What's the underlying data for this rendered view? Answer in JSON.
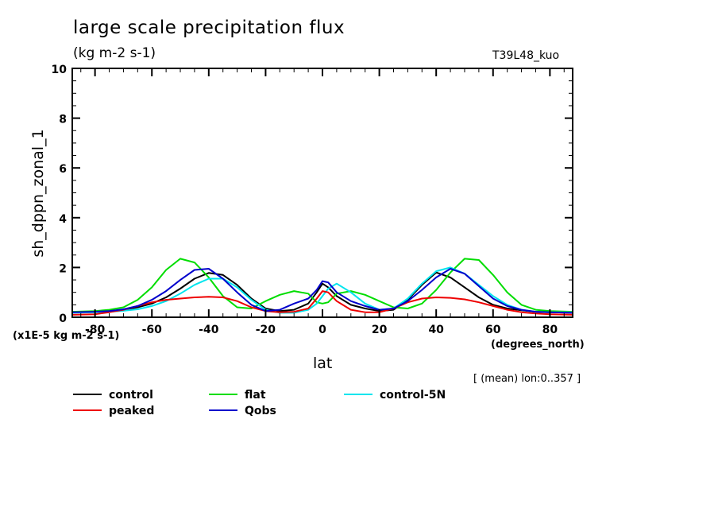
{
  "chart_data": {
    "type": "line",
    "title": "large scale precipitation flux",
    "subtitle": "(kg m-2 s-1)",
    "run_label": "T39L48_kuo",
    "xlabel": "lat",
    "x_units": "(degrees_north)",
    "ylabel": "sh_dppn_zonal_1",
    "y_scale_note": "(x1E-5 kg m-2 s-1)",
    "mean_note": "[ (mean) lon:0..357 ]",
    "xlim": [
      -88,
      88
    ],
    "ylim": [
      0,
      10
    ],
    "x_ticks": [
      -80,
      -60,
      -40,
      -20,
      0,
      20,
      40,
      60,
      80
    ],
    "x_tick_labels": [
      "-80",
      "-60",
      "-40",
      "-20",
      "0",
      "20",
      "40",
      "60",
      "80"
    ],
    "y_ticks": [
      0,
      2,
      4,
      6,
      8,
      10
    ],
    "y_tick_labels": [
      "0",
      "2",
      "4",
      "6",
      "8",
      "10"
    ],
    "grid": false,
    "legend_position": "bottom",
    "x": [
      -88,
      -80,
      -75,
      -70,
      -65,
      -60,
      -55,
      -50,
      -45,
      -40,
      -35,
      -30,
      -25,
      -20,
      -15,
      -10,
      -5,
      -2,
      0,
      2,
      5,
      10,
      15,
      20,
      25,
      30,
      35,
      40,
      45,
      50,
      55,
      60,
      65,
      70,
      75,
      80,
      88
    ],
    "series": [
      {
        "name": "control",
        "color": "#000000",
        "values": [
          0.2,
          0.22,
          0.25,
          0.3,
          0.4,
          0.55,
          0.8,
          1.15,
          1.55,
          1.78,
          1.7,
          1.3,
          0.75,
          0.35,
          0.25,
          0.3,
          0.55,
          1.0,
          1.35,
          1.2,
          0.85,
          0.5,
          0.35,
          0.25,
          0.3,
          0.7,
          1.3,
          1.8,
          1.6,
          1.2,
          0.8,
          0.5,
          0.35,
          0.28,
          0.22,
          0.2,
          0.18
        ]
      },
      {
        "name": "flat",
        "color": "#00dd00",
        "values": [
          0.22,
          0.25,
          0.3,
          0.4,
          0.7,
          1.2,
          1.9,
          2.35,
          2.2,
          1.6,
          0.85,
          0.4,
          0.35,
          0.65,
          0.9,
          1.05,
          0.95,
          0.6,
          0.55,
          0.6,
          0.95,
          1.05,
          0.9,
          0.65,
          0.4,
          0.35,
          0.55,
          1.1,
          1.8,
          2.35,
          2.3,
          1.7,
          1.0,
          0.5,
          0.3,
          0.25,
          0.22
        ]
      },
      {
        "name": "control-5N",
        "color": "#00e5ee",
        "values": [
          0.18,
          0.2,
          0.22,
          0.26,
          0.32,
          0.45,
          0.65,
          0.95,
          1.3,
          1.55,
          1.55,
          1.2,
          0.7,
          0.3,
          0.18,
          0.18,
          0.3,
          0.55,
          0.85,
          1.15,
          1.35,
          1.0,
          0.55,
          0.3,
          0.35,
          0.75,
          1.35,
          1.85,
          2.0,
          1.75,
          1.3,
          0.85,
          0.5,
          0.3,
          0.22,
          0.2,
          0.2
        ]
      },
      {
        "name": "peaked",
        "color": "#ee0000",
        "values": [
          0.1,
          0.12,
          0.2,
          0.3,
          0.45,
          0.6,
          0.7,
          0.75,
          0.8,
          0.82,
          0.8,
          0.65,
          0.4,
          0.25,
          0.2,
          0.22,
          0.35,
          0.75,
          1.05,
          1.0,
          0.65,
          0.3,
          0.2,
          0.2,
          0.35,
          0.6,
          0.75,
          0.8,
          0.78,
          0.72,
          0.6,
          0.45,
          0.3,
          0.2,
          0.15,
          0.12,
          0.1
        ]
      },
      {
        "name": "Qobs",
        "color": "#0000cc",
        "values": [
          0.2,
          0.22,
          0.25,
          0.32,
          0.45,
          0.7,
          1.05,
          1.5,
          1.9,
          1.95,
          1.55,
          1.0,
          0.5,
          0.25,
          0.3,
          0.55,
          0.75,
          1.1,
          1.45,
          1.4,
          1.0,
          0.65,
          0.45,
          0.3,
          0.35,
          0.65,
          1.1,
          1.6,
          1.95,
          1.75,
          1.25,
          0.75,
          0.45,
          0.3,
          0.22,
          0.2,
          0.18
        ]
      }
    ]
  },
  "legend": [
    {
      "label": "control",
      "color": "#000000"
    },
    {
      "label": "flat",
      "color": "#00dd00"
    },
    {
      "label": "control-5N",
      "color": "#00e5ee"
    },
    {
      "label": "peaked",
      "color": "#ee0000"
    },
    {
      "label": "Qobs",
      "color": "#0000cc"
    }
  ]
}
